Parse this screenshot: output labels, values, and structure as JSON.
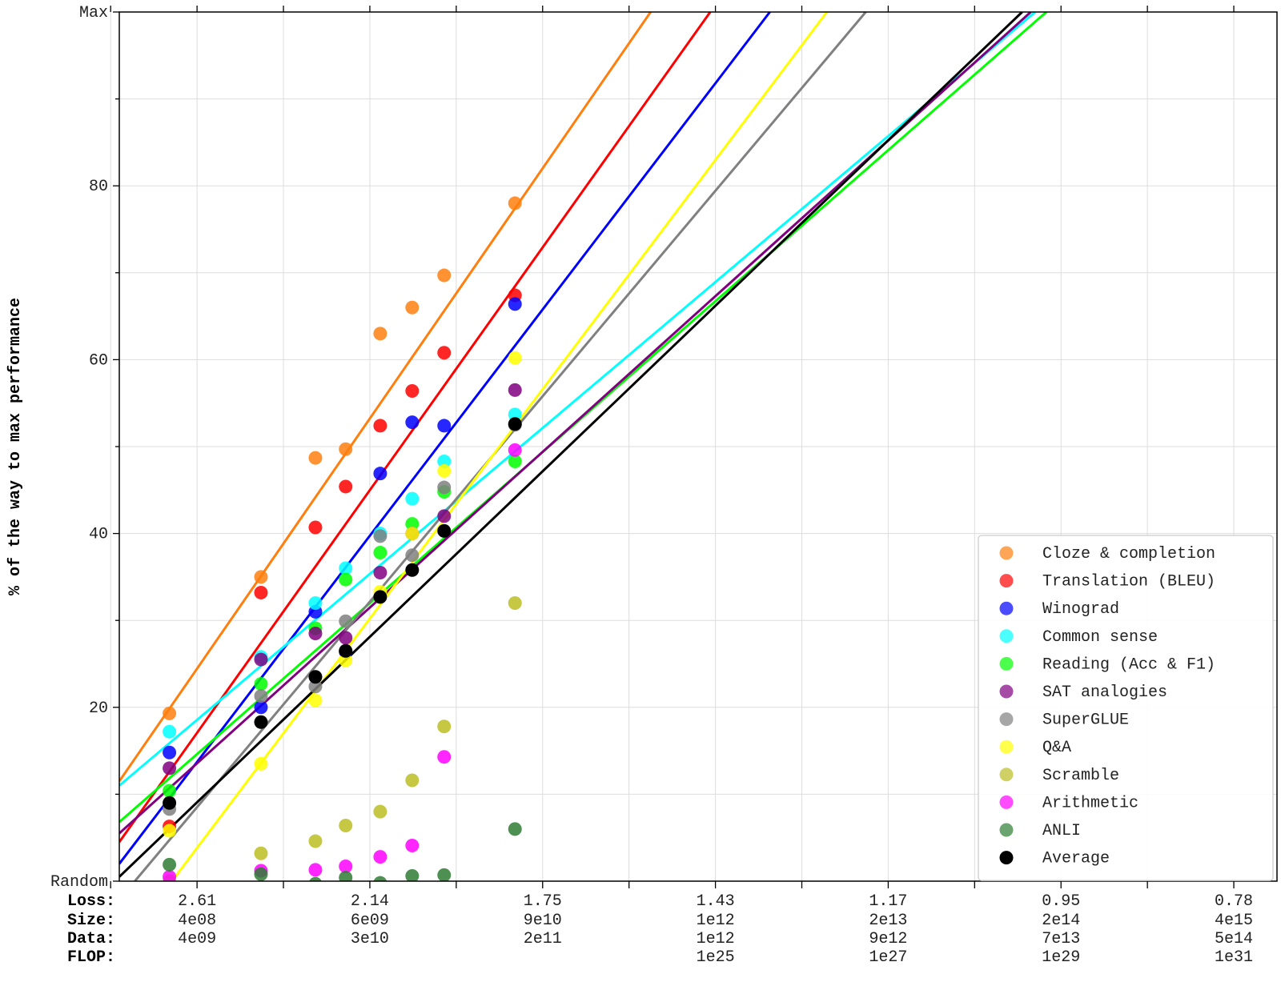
{
  "chart_data": {
    "type": "scatter",
    "title": "",
    "ylabel": "% of the way to max performance",
    "xlabel": "",
    "grid": true,
    "legend_position": "lower-right",
    "ylim": [
      0,
      100
    ],
    "y_tick_labels": [
      {
        "value": 0,
        "label": "Random"
      },
      {
        "value": 20,
        "label": "20"
      },
      {
        "value": 40,
        "label": "40"
      },
      {
        "value": 60,
        "label": "60"
      },
      {
        "value": 80,
        "label": "80"
      },
      {
        "value": 100,
        "label": "Max"
      }
    ],
    "x_axis": {
      "variable": "log compute (minor tick index)",
      "range": [
        1.1,
        14.5
      ],
      "row_labels": [
        "Loss:",
        "Size:",
        "Data:",
        "FLOP:"
      ],
      "labeled_ticks": [
        {
          "x": 2,
          "loss": "2.61",
          "size": "4e08",
          "data": "4e09",
          "flop": ""
        },
        {
          "x": 4,
          "loss": "2.14",
          "size": "6e09",
          "data": "3e10",
          "flop": ""
        },
        {
          "x": 6,
          "loss": "1.75",
          "size": "9e10",
          "data": "2e11",
          "flop": ""
        },
        {
          "x": 8,
          "loss": "1.43",
          "size": "1e12",
          "data": "1e12",
          "flop": "1e25"
        },
        {
          "x": 10,
          "loss": "1.17",
          "size": "2e13",
          "data": "9e12",
          "flop": "1e27"
        },
        {
          "x": 12,
          "loss": "0.95",
          "size": "2e14",
          "data": "7e13",
          "flop": "1e29"
        },
        {
          "x": 14,
          "loss": "0.78",
          "size": "4e15",
          "data": "5e14",
          "flop": "1e31"
        }
      ],
      "minor_ticks": [
        1,
        3,
        5,
        7,
        9,
        11,
        13
      ]
    },
    "model_x": [
      1.68,
      2.74,
      3.37,
      3.72,
      4.12,
      4.49,
      4.86,
      5.68
    ],
    "series": [
      {
        "name": "Cloze & completion",
        "color": "#ff7f0e",
        "values": [
          19.3,
          35.0,
          48.7,
          49.7,
          63.0,
          66.0,
          69.7,
          78.0
        ],
        "fit": [
          [
            1.1,
            11.5
          ],
          [
            7.25,
            100
          ]
        ]
      },
      {
        "name": "Translation (BLEU)",
        "color": "#ff0000",
        "values": [
          6.3,
          33.2,
          40.7,
          45.4,
          52.4,
          56.4,
          60.8,
          67.4
        ],
        "fit": [
          [
            1.1,
            4.5
          ],
          [
            7.94,
            100
          ]
        ]
      },
      {
        "name": "Winograd",
        "color": "#0000ff",
        "values": [
          14.8,
          20.0,
          31.0,
          26.4,
          46.9,
          52.8,
          52.4,
          66.4
        ],
        "fit": [
          [
            1.1,
            2.0
          ],
          [
            8.63,
            100
          ]
        ]
      },
      {
        "name": "Common sense",
        "color": "#00ffff",
        "values": [
          17.2,
          25.8,
          32.0,
          36.0,
          40.0,
          44.0,
          48.3,
          53.7
        ],
        "fit": [
          [
            1.1,
            11.0
          ],
          [
            11.7,
            100
          ]
        ]
      },
      {
        "name": "Reading (Acc & F1)",
        "color": "#00ff00",
        "values": [
          10.4,
          22.7,
          29.1,
          34.7,
          37.8,
          41.1,
          44.8,
          48.3
        ],
        "fit": [
          [
            1.1,
            6.8
          ],
          [
            11.83,
            100
          ]
        ]
      },
      {
        "name": "SAT analogies",
        "color": "#800080",
        "values": [
          13.0,
          25.5,
          28.5,
          28.0,
          35.5,
          40.0,
          42.0,
          56.5
        ],
        "fit": [
          [
            1.1,
            5.5
          ],
          [
            11.65,
            100
          ]
        ]
      },
      {
        "name": "SuperGLUE",
        "color": "#808080",
        "values": [
          8.3,
          21.3,
          22.4,
          29.9,
          39.7,
          37.5,
          45.3,
          52.5
        ],
        "fit": [
          [
            1.28,
            0
          ],
          [
            9.74,
            100
          ]
        ]
      },
      {
        "name": "Q&A",
        "color": "#ffff00",
        "values": [
          5.8,
          13.5,
          20.8,
          25.4,
          33.3,
          40.0,
          47.2,
          60.2
        ],
        "fit": [
          [
            1.71,
            0
          ],
          [
            9.29,
            100
          ]
        ]
      },
      {
        "name": "Scramble",
        "color": "#bcbd22",
        "values": [
          0.0,
          3.2,
          4.6,
          6.4,
          8.0,
          11.6,
          17.8,
          32.0
        ],
        "fit": null
      },
      {
        "name": "Arithmetic",
        "color": "#ff00ff",
        "values": [
          0.5,
          1.2,
          1.3,
          1.7,
          2.8,
          4.1,
          14.3,
          49.6
        ],
        "fit": null
      },
      {
        "name": "ANLI",
        "color": "#2e7d32",
        "values": [
          1.9,
          0.8,
          -0.3,
          0.4,
          -0.2,
          0.6,
          0.7,
          6.0
        ],
        "fit": null
      },
      {
        "name": "Average",
        "color": "#000000",
        "values": [
          9.0,
          18.3,
          23.5,
          26.5,
          32.7,
          35.8,
          40.3,
          52.6
        ],
        "fit": [
          [
            1.1,
            0.5
          ],
          [
            11.55,
            100
          ]
        ]
      }
    ]
  }
}
